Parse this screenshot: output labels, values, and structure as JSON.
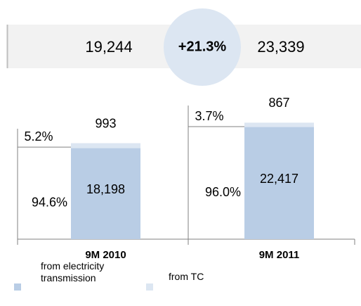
{
  "chart_data": {
    "type": "stacked-bar",
    "growth": "+21.3%",
    "totals": [
      19244,
      23339
    ],
    "total_labels": [
      "19,244",
      "23,339"
    ],
    "categories": [
      "9M 2010",
      "9M 2011"
    ],
    "series": [
      {
        "name": "from electricity transmission",
        "color": "#b9cde5",
        "values": [
          18198,
          22417
        ],
        "value_labels": [
          "18,198",
          "22,417"
        ],
        "share_labels": [
          "94.6%",
          "96.0%"
        ]
      },
      {
        "name": "from TC",
        "color": "#dce6f2",
        "values": [
          993,
          867
        ],
        "value_labels": [
          "993",
          "867"
        ],
        "share_labels": [
          "5.2%",
          "3.7%"
        ]
      }
    ]
  }
}
